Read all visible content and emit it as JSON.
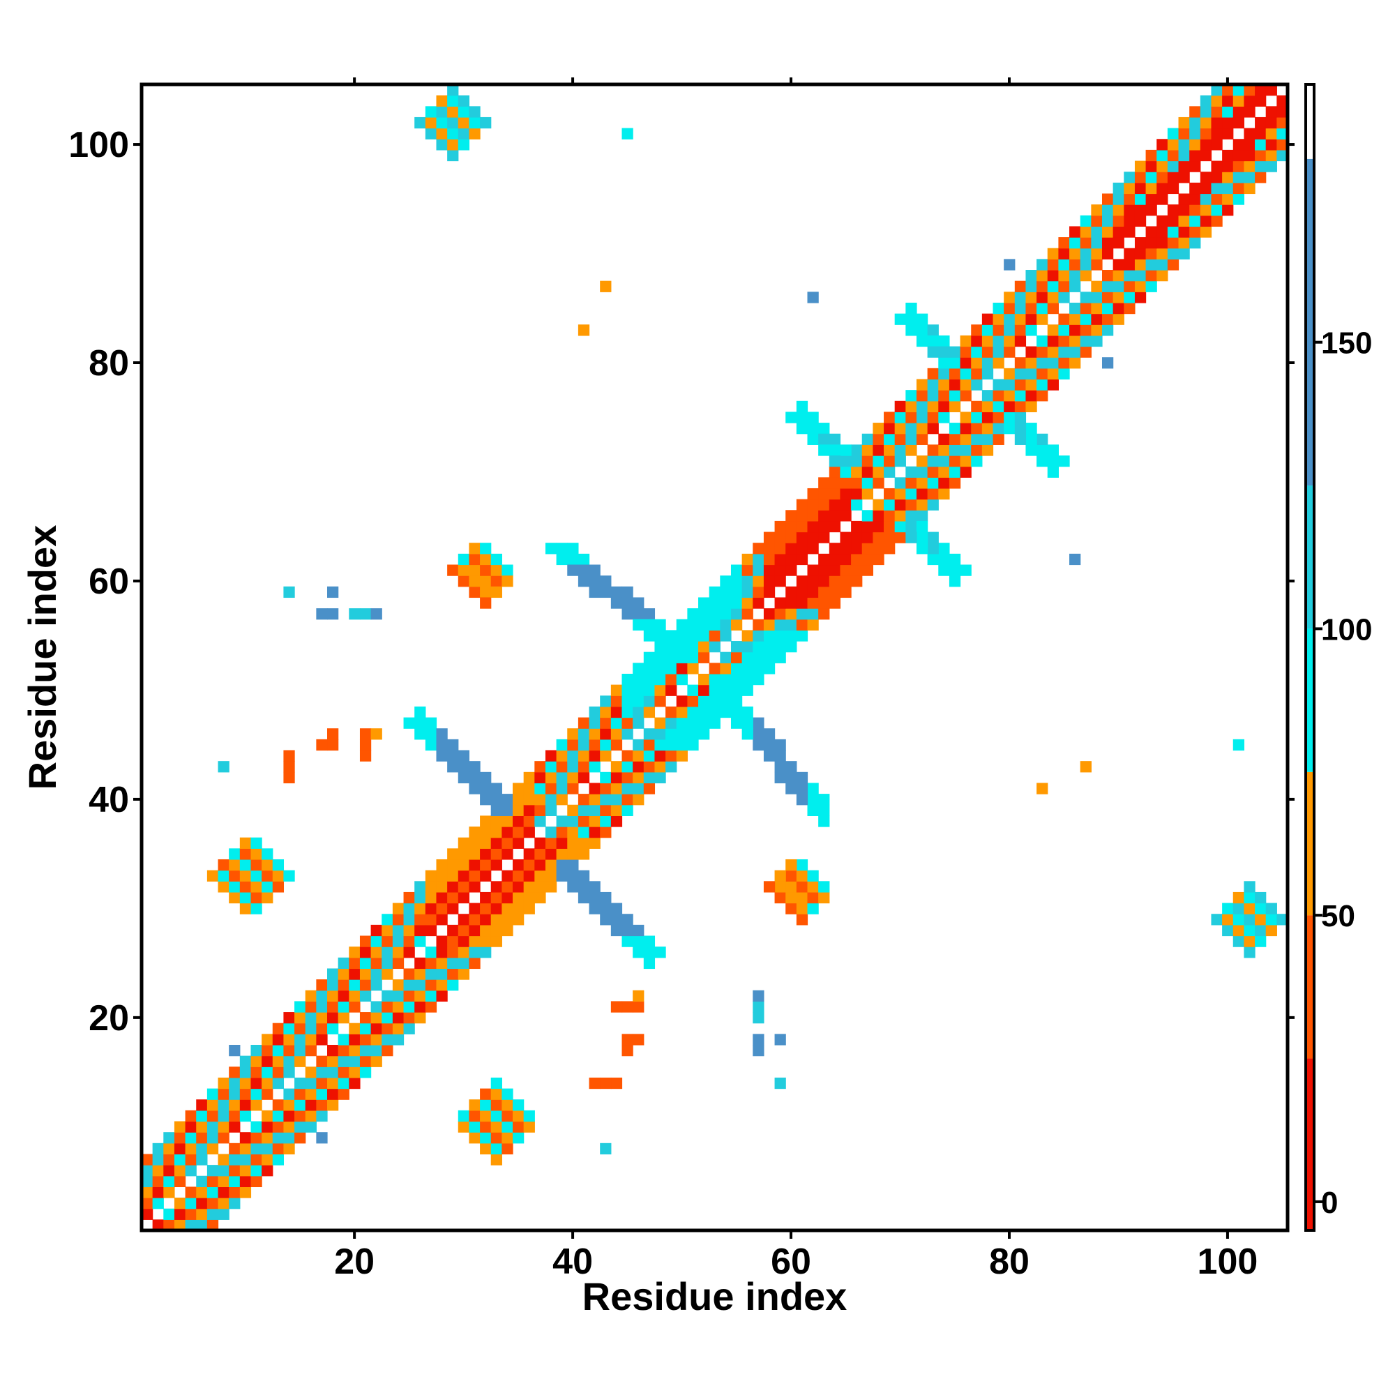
{
  "chart_data": {
    "type": "heatmap",
    "title": "",
    "xlabel": "Residue index",
    "ylabel": "Residue index",
    "n_residues": 105,
    "xlim": [
      1,
      105
    ],
    "ylim": [
      1,
      105
    ],
    "x_ticks": [
      20,
      40,
      60,
      80,
      100
    ],
    "y_ticks": [
      20,
      40,
      60,
      80,
      100
    ],
    "colorbar": {
      "range": [
        -5,
        195
      ],
      "ticks": [
        0,
        50,
        100,
        150
      ],
      "bands": [
        {
          "from": -5,
          "to": 25,
          "color": "#ee1100"
        },
        {
          "from": 25,
          "to": 50,
          "color": "#ff5500"
        },
        {
          "from": 50,
          "to": 75,
          "color": "#ff9900"
        },
        {
          "from": 75,
          "to": 100,
          "color": "#00eeee"
        },
        {
          "from": 100,
          "to": 125,
          "color": "#22ccdd"
        },
        {
          "from": 125,
          "to": 182,
          "color": "#4a90c8"
        },
        {
          "from": 182,
          "to": 195,
          "color": "#ffffff"
        }
      ]
    },
    "symmetric": true,
    "regions": [
      {
        "name": "diagonal",
        "from": [
          1,
          1
        ],
        "to": [
          105,
          105
        ],
        "width": 9,
        "pattern": "diagonal-band"
      },
      {
        "name": "antiparallel-1",
        "from": [
          26,
          47
        ],
        "to": [
          47,
          26
        ],
        "width": 3,
        "value": 150
      },
      {
        "name": "antiparallel-2",
        "from": [
          39,
          63
        ],
        "to": [
          48,
          55
        ],
        "width": 3,
        "value": 155
      },
      {
        "name": "antiparallel-3",
        "from": [
          61,
          75
        ],
        "to": [
          75,
          61
        ],
        "width": 3,
        "value": 120
      },
      {
        "name": "antiparallel-4",
        "from": [
          71,
          84
        ],
        "to": [
          84,
          71
        ],
        "width": 3,
        "value": 120
      },
      {
        "name": "cluster-28-102",
        "x": [
          26,
          32
        ],
        "y": [
          99,
          105
        ],
        "value": 80
      },
      {
        "name": "cluster-101-29",
        "x": [
          100,
          105
        ],
        "y": [
          27,
          31
        ],
        "value": 85
      },
      {
        "name": "cluster-9-33",
        "x": [
          7,
          14
        ],
        "y": [
          30,
          36
        ],
        "value": 45
      },
      {
        "name": "cluster-33-9",
        "x": [
          30,
          36
        ],
        "y": [
          7,
          14
        ],
        "value": 60
      },
      {
        "name": "cluster-31-60",
        "x": [
          29,
          34
        ],
        "y": [
          59,
          63
        ],
        "value": 55
      },
      {
        "name": "cluster-61-31",
        "x": [
          58,
          62
        ],
        "y": [
          30,
          34
        ],
        "value": 50
      }
    ],
    "points": [
      {
        "x": 45,
        "y": 101,
        "value": 95
      },
      {
        "x": 43,
        "y": 87,
        "value": 50
      },
      {
        "x": 41,
        "y": 83,
        "value": 50
      },
      {
        "x": 62,
        "y": 86,
        "value": 150
      },
      {
        "x": 80,
        "y": 89,
        "value": 150
      },
      {
        "x": 89,
        "y": 80,
        "value": 150
      },
      {
        "x": 86,
        "y": 62,
        "value": 150
      },
      {
        "x": 101,
        "y": 45,
        "value": 95
      },
      {
        "x": 87,
        "y": 43,
        "value": 50
      },
      {
        "x": 83,
        "y": 41,
        "value": 50
      },
      {
        "x": 14,
        "y": 59,
        "value": 120
      },
      {
        "x": 18,
        "y": 59,
        "value": 150
      },
      {
        "x": 18,
        "y": 57,
        "value": 150
      },
      {
        "x": 20,
        "y": 57,
        "value": 120
      },
      {
        "x": 21,
        "y": 57,
        "value": 150
      },
      {
        "x": 59,
        "y": 14,
        "value": 120
      },
      {
        "x": 59,
        "y": 18,
        "value": 150
      },
      {
        "x": 57,
        "y": 18,
        "value": 150
      },
      {
        "x": 57,
        "y": 21,
        "value": 120
      },
      {
        "x": 8,
        "y": 43,
        "value": 110
      },
      {
        "x": 43,
        "y": 8,
        "value": 110
      },
      {
        "x": 9,
        "y": 17,
        "value": 150
      },
      {
        "x": 17,
        "y": 9,
        "value": 150
      },
      {
        "x": 14,
        "y": 44,
        "value": 40
      },
      {
        "x": 14,
        "y": 43,
        "value": 40
      },
      {
        "x": 17,
        "y": 45,
        "value": 40
      },
      {
        "x": 18,
        "y": 45,
        "value": 40
      },
      {
        "x": 21,
        "y": 46,
        "value": 40
      },
      {
        "x": 21,
        "y": 45,
        "value": 40
      },
      {
        "x": 22,
        "y": 46,
        "value": 60
      },
      {
        "x": 44,
        "y": 21,
        "value": 40
      },
      {
        "x": 45,
        "y": 21,
        "value": 40
      },
      {
        "x": 45,
        "y": 18,
        "value": 40
      },
      {
        "x": 46,
        "y": 18,
        "value": 40
      },
      {
        "x": 46,
        "y": 22,
        "value": 60
      },
      {
        "x": 42,
        "y": 14,
        "value": 40
      },
      {
        "x": 43,
        "y": 14,
        "value": 40
      },
      {
        "x": 57,
        "y": 22,
        "value": 150
      },
      {
        "x": 17,
        "y": 57,
        "value": 150
      }
    ]
  }
}
